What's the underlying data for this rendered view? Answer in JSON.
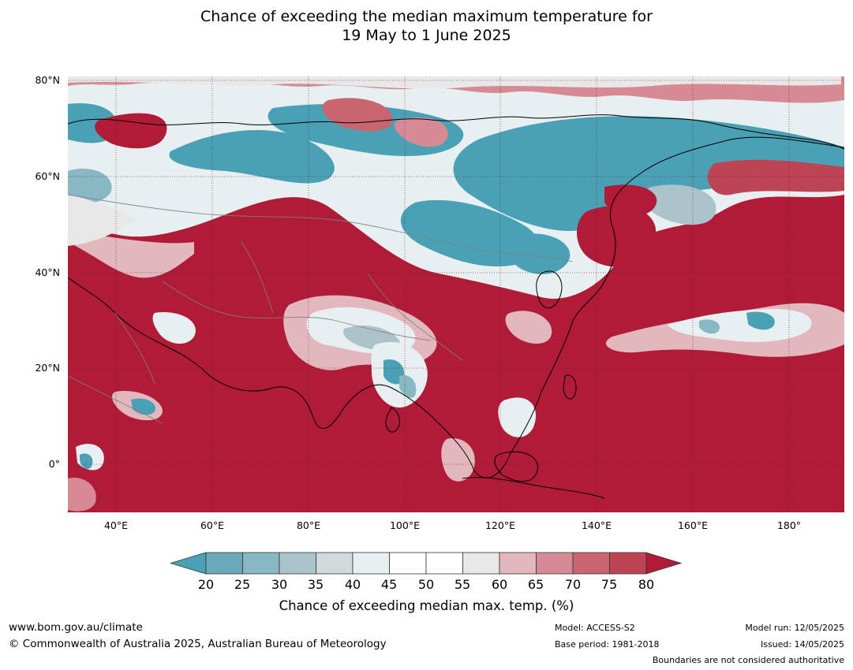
{
  "title": {
    "line1": "Chance of exceeding the median maximum temperature for",
    "line2": "19 May to 1 June 2025"
  },
  "map": {
    "lat_labels": [
      "80°N",
      "60°N",
      "40°N",
      "20°N",
      "0°"
    ],
    "lon_labels": [
      "40°E",
      "60°E",
      "80°E",
      "100°E",
      "120°E",
      "140°E",
      "160°E",
      "180°"
    ],
    "lon_range": [
      30,
      191
    ],
    "lat_range": [
      -10,
      81
    ],
    "dominant_category": "above 80% (dark red)",
    "colors": {
      "ocean_base": "#b01c37",
      "low": "#42a0b4",
      "neutral": "#ffffff",
      "high": "#b01c37"
    }
  },
  "colorbar": {
    "ticks": [
      "20",
      "25",
      "30",
      "35",
      "40",
      "45",
      "50",
      "55",
      "60",
      "65",
      "70",
      "75",
      "80"
    ],
    "colors": [
      "#4aa1b5",
      "#6aa9b8",
      "#89b8c5",
      "#abc4cb",
      "#d0dadc",
      "#e8eff1",
      "#ffffff",
      "#ffffff",
      "#e8e8e8",
      "#e2b7be",
      "#d68b94",
      "#c8656f",
      "#bd4553",
      "#b01c37"
    ],
    "label": "Chance of exceeding median max. temp. (%)"
  },
  "footer": {
    "website": "www.bom.gov.au/climate",
    "copyright": "© Commonwealth of Australia 2025, Australian Bureau of Meteorology",
    "model": "Model: ACCESS-S2",
    "base_period": "Base period: 1981-2018",
    "model_run": "Model run: 12/05/2025",
    "issued": "Issued: 14/05/2025",
    "disclaimer": "Boundaries are not considered authoritative"
  }
}
